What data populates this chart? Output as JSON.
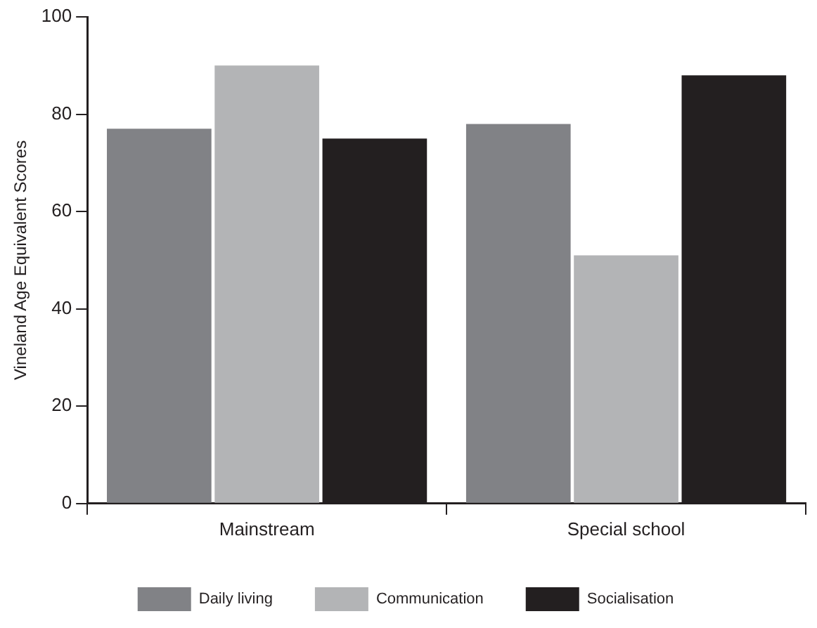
{
  "chart_data": {
    "type": "bar",
    "ylabel": "Vineland Age Equivalent Scores",
    "categories": [
      "Mainstream",
      "Special school"
    ],
    "series": [
      {
        "name": "Daily living",
        "color": "#818286",
        "values": [
          77,
          78
        ]
      },
      {
        "name": "Communication",
        "color": "#b3b4b6",
        "values": [
          90,
          51
        ]
      },
      {
        "name": "Socialisation",
        "color": "#231f20",
        "values": [
          75,
          88
        ]
      }
    ],
    "ylim": [
      0,
      100
    ],
    "yticks": [
      0,
      20,
      40,
      60,
      80,
      100
    ],
    "grid": false,
    "legend": "bottom"
  }
}
